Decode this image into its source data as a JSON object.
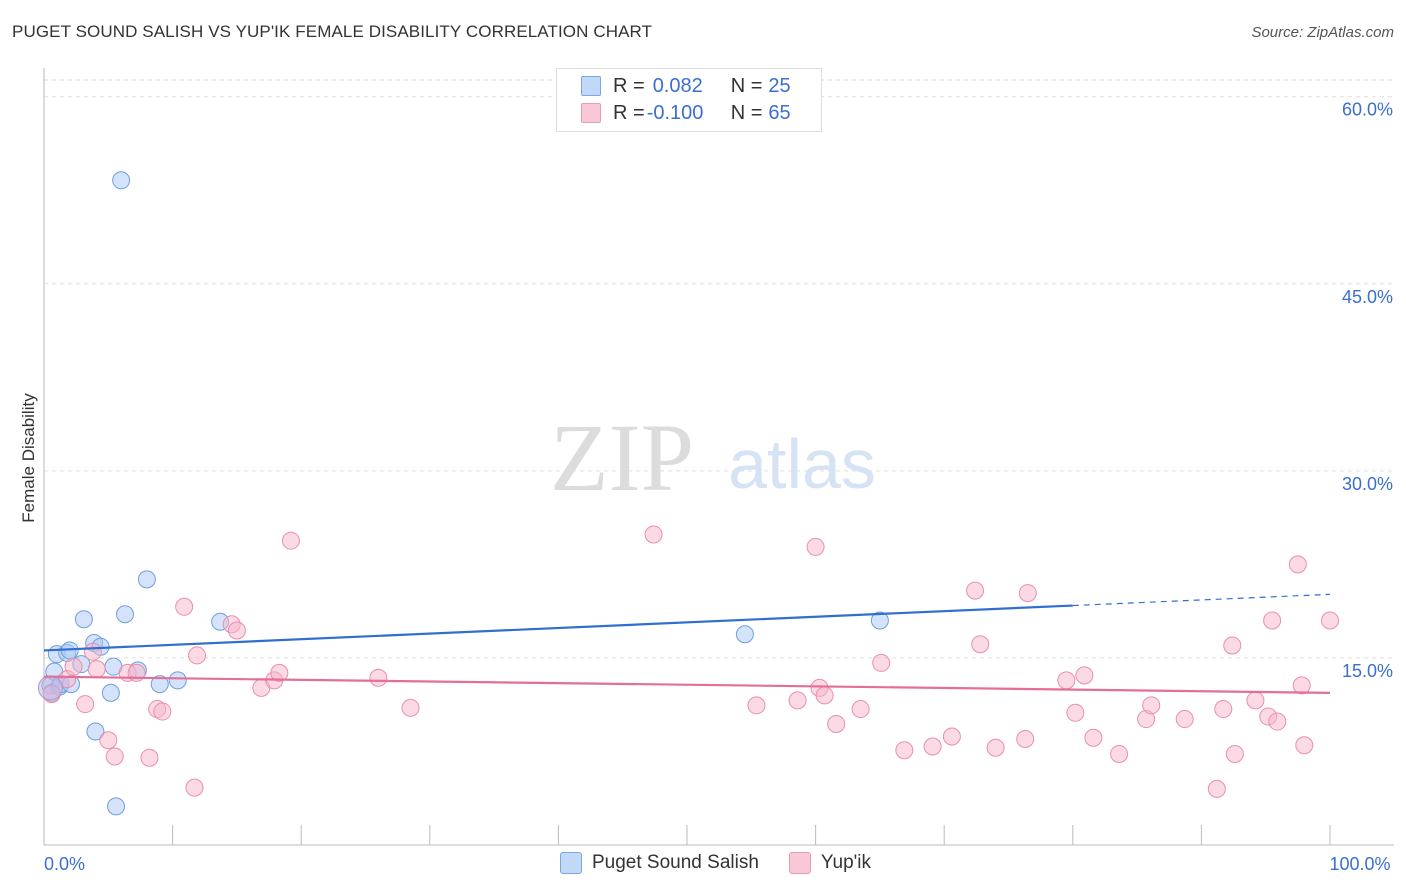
{
  "title": "PUGET SOUND SALISH VS YUP'IK FEMALE DISABILITY CORRELATION CHART",
  "source": "Source: ZipAtlas.com",
  "watermark": {
    "zip": "ZIP",
    "atlas": "atlas"
  },
  "legend": {
    "rows": [
      {
        "r_label": "R = ",
        "r_value": "0.082",
        "n_label": "N = ",
        "n_value": "25"
      },
      {
        "r_label": "R = ",
        "r_value": "-0.100",
        "n_label": "N = ",
        "n_value": "65"
      }
    ]
  },
  "bottom_legend": [
    "Puget Sound Salish",
    "Yup'ik"
  ],
  "colors": {
    "blue_fill": "#a9c8f5",
    "blue_stroke": "#6f9fdc",
    "blue_line": "#2f6fd0",
    "pink_fill": "#f7b6cb",
    "pink_stroke": "#ea8fab",
    "pink_line": "#e46e98",
    "axis_label": "#3a6fd0",
    "grid": "#dddddd"
  },
  "chart_data": {
    "type": "scatter",
    "title": "PUGET SOUND SALISH VS YUP'IK FEMALE DISABILITY CORRELATION CHART",
    "xlabel": "",
    "ylabel": "Female Disability",
    "xlim": [
      0,
      100
    ],
    "ylim": [
      0,
      61.5
    ],
    "x_tick_labels": [
      {
        "value": 0,
        "label": "0.0%"
      },
      {
        "value": 100,
        "label": "100.0%"
      }
    ],
    "y_ticks": [
      {
        "value": 15,
        "label": "15.0%"
      },
      {
        "value": 30,
        "label": "30.0%"
      },
      {
        "value": 45,
        "label": "45.0%"
      },
      {
        "value": 60,
        "label": "60.0%"
      }
    ],
    "x_minor_ticks": [
      0,
      10,
      20,
      30,
      40,
      50,
      60,
      70,
      80,
      90,
      100
    ],
    "series": [
      {
        "name": "Puget Sound Salish",
        "color_key": "blue",
        "points": [
          [
            0.5,
            12.8
          ],
          [
            0.6,
            12.2
          ],
          [
            0.8,
            13.9
          ],
          [
            1.0,
            15.3
          ],
          [
            1.2,
            12.7
          ],
          [
            1.3,
            12.9
          ],
          [
            1.8,
            15.4
          ],
          [
            2.0,
            15.6
          ],
          [
            2.1,
            12.9
          ],
          [
            2.9,
            14.5
          ],
          [
            3.1,
            18.1
          ],
          [
            3.9,
            16.2
          ],
          [
            4.0,
            9.1
          ],
          [
            4.4,
            15.9
          ],
          [
            5.2,
            12.2
          ],
          [
            5.4,
            14.3
          ],
          [
            5.6,
            3.1
          ],
          [
            6.0,
            53.3
          ],
          [
            6.3,
            18.5
          ],
          [
            7.3,
            14.0
          ],
          [
            8.0,
            21.3
          ],
          [
            9.0,
            12.9
          ],
          [
            10.4,
            13.2
          ],
          [
            13.7,
            17.9
          ],
          [
            54.5,
            16.9
          ],
          [
            65.0,
            18.0
          ]
        ],
        "trend": {
          "x0": 0,
          "y0": 15.6,
          "x1": 80,
          "y1": 19.2,
          "dash_x1": 100,
          "dash_y1": 20.1
        }
      },
      {
        "name": "Yup'ik",
        "color_key": "pink",
        "points": [
          [
            0.6,
            12.1
          ],
          [
            1.8,
            13.3
          ],
          [
            2.3,
            14.3
          ],
          [
            3.2,
            11.3
          ],
          [
            3.8,
            15.5
          ],
          [
            4.1,
            14.1
          ],
          [
            5.0,
            8.4
          ],
          [
            5.5,
            7.1
          ],
          [
            6.5,
            13.8
          ],
          [
            7.2,
            13.8
          ],
          [
            8.2,
            7.0
          ],
          [
            8.8,
            10.9
          ],
          [
            9.2,
            10.7
          ],
          [
            10.9,
            19.1
          ],
          [
            11.7,
            4.6
          ],
          [
            11.9,
            15.2
          ],
          [
            14.6,
            17.7
          ],
          [
            15.0,
            17.2
          ],
          [
            16.9,
            12.6
          ],
          [
            17.9,
            13.2
          ],
          [
            18.3,
            13.8
          ],
          [
            19.2,
            24.4
          ],
          [
            26.0,
            13.4
          ],
          [
            28.5,
            11.0
          ],
          [
            47.4,
            24.9
          ],
          [
            55.4,
            11.2
          ],
          [
            58.6,
            11.6
          ],
          [
            60.0,
            23.9
          ],
          [
            60.3,
            12.6
          ],
          [
            60.7,
            12.0
          ],
          [
            61.6,
            9.7
          ],
          [
            63.5,
            10.9
          ],
          [
            65.1,
            14.6
          ],
          [
            66.9,
            7.6
          ],
          [
            69.1,
            7.9
          ],
          [
            70.6,
            8.7
          ],
          [
            72.4,
            20.4
          ],
          [
            72.8,
            16.1
          ],
          [
            74.0,
            7.8
          ],
          [
            76.3,
            8.5
          ],
          [
            76.5,
            20.2
          ],
          [
            79.5,
            13.2
          ],
          [
            80.2,
            10.6
          ],
          [
            80.9,
            13.6
          ],
          [
            81.6,
            8.6
          ],
          [
            83.6,
            7.3
          ],
          [
            85.7,
            10.1
          ],
          [
            86.1,
            11.2
          ],
          [
            88.7,
            10.1
          ],
          [
            91.2,
            4.5
          ],
          [
            91.7,
            10.9
          ],
          [
            92.4,
            16.0
          ],
          [
            92.6,
            7.3
          ],
          [
            94.2,
            11.6
          ],
          [
            95.2,
            10.3
          ],
          [
            95.5,
            18.0
          ],
          [
            95.9,
            9.9
          ],
          [
            97.5,
            22.5
          ],
          [
            97.8,
            12.8
          ],
          [
            98.0,
            8.0
          ],
          [
            100.0,
            18.0
          ]
        ],
        "trend": {
          "x0": 0,
          "y0": 13.5,
          "x1": 100,
          "y1": 12.2
        }
      }
    ]
  }
}
